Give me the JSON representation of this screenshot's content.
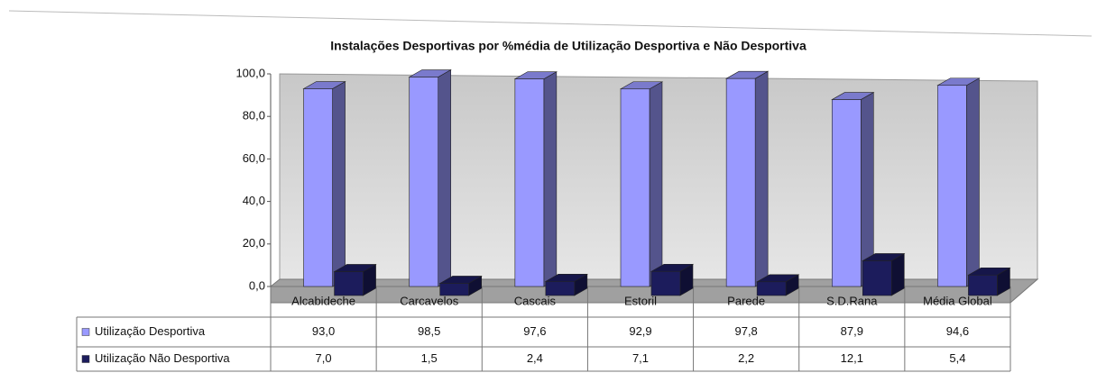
{
  "chart_data": {
    "type": "bar",
    "title": "Instalações Desportivas por %média de Utilização Desportiva e Não Desportiva",
    "categories": [
      "Alcabideche",
      "Carcavelos",
      "Cascais",
      "Estoril",
      "Parede",
      "S.D.Rana",
      "Média Global"
    ],
    "series": [
      {
        "name": "Utilização Desportiva",
        "color": "#9999ff",
        "values": [
          93.0,
          98.5,
          97.6,
          92.9,
          97.8,
          87.9,
          94.6
        ],
        "value_labels": [
          "93,0",
          "98,5",
          "97,6",
          "92,9",
          "97,8",
          "87,9",
          "94,6"
        ]
      },
      {
        "name": "Utilização Não Desportiva",
        "color": "#1c1c5c",
        "values": [
          7.0,
          1.5,
          2.4,
          7.1,
          2.2,
          12.1,
          5.4
        ],
        "value_labels": [
          "7,0",
          "1,5",
          "2,4",
          "7,1",
          "2,2",
          "12,1",
          "5,4"
        ]
      }
    ],
    "ylim": [
      0,
      100
    ],
    "yticks": [
      {
        "value": 0,
        "label": "0,0"
      },
      {
        "value": 20,
        "label": "20,0"
      },
      {
        "value": 40,
        "label": "40,0"
      },
      {
        "value": 60,
        "label": "60,0"
      },
      {
        "value": 80,
        "label": "80,0"
      },
      {
        "value": 100,
        "label": "100,0"
      }
    ],
    "grid": false
  }
}
